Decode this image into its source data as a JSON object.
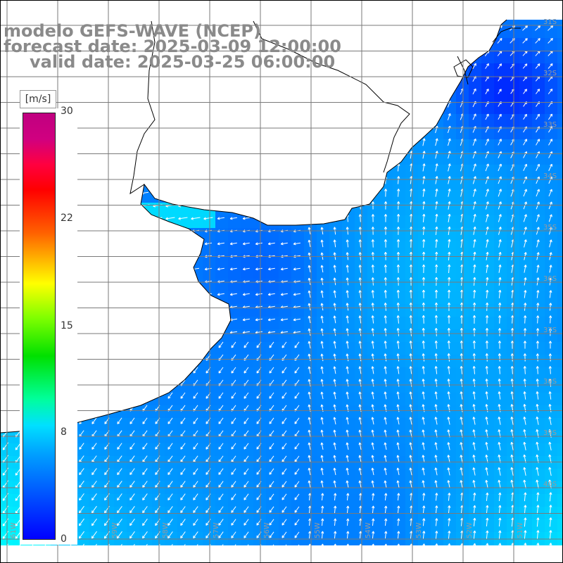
{
  "header": {
    "model_title": "modelo GEFS-WAVE (NCEP)",
    "forecast_date": "forecast date: 2025-03-09 12:00:00",
    "valid_date": "valid date: 2025-03-25 06:00:00"
  },
  "colorbar": {
    "unit": "[m/s]",
    "tick_labels": [
      "30",
      "22",
      "15",
      "8",
      "0"
    ],
    "tick_values": [
      30,
      22,
      15,
      8,
      0
    ],
    "colors": {
      "min": "#0000ff",
      "low": "#00a0ff",
      "mid_low": "#00ffff",
      "mid": "#00e000",
      "mid_high": "#ffff00",
      "high": "#ff0000",
      "max": "#c00080"
    }
  },
  "map": {
    "lat_labels": [
      "31S",
      "32S",
      "33S",
      "34S",
      "35S",
      "36S",
      "37S",
      "38S",
      "39S",
      "40S"
    ],
    "lon_labels": [
      "61W",
      "60W",
      "59W",
      "58W",
      "57W",
      "56W",
      "55W",
      "54W",
      "53W",
      "52W",
      "51W"
    ],
    "grid": true,
    "land_color": "#ffffff",
    "coastline_color": "#000000",
    "vector_color": "#ffffff"
  }
}
